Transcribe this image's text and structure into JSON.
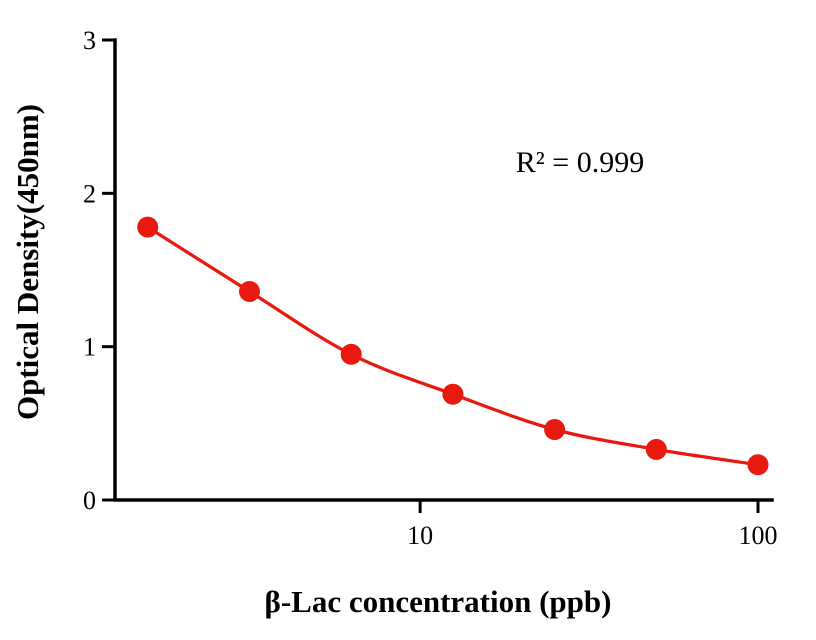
{
  "chart_data": {
    "type": "scatter",
    "x": [
      1.5625,
      3.125,
      6.25,
      12.5,
      25,
      50,
      100
    ],
    "y": [
      1.78,
      1.36,
      0.95,
      0.69,
      0.46,
      0.33,
      0.23
    ],
    "x_scale": "log10",
    "xlabel": "β-Lac concentration (ppb)",
    "ylabel": "Optical Density(450nm)",
    "annotation": "R² = 0.999",
    "x_ticks": [
      10,
      100
    ],
    "x_tick_labels": [
      "10",
      "100"
    ],
    "y_ticks": [
      0,
      1,
      2,
      3
    ],
    "y_tick_labels": [
      "0",
      "1",
      "2",
      "3"
    ],
    "xlim": [
      1.25,
      110
    ],
    "ylim": [
      0,
      3
    ],
    "grid": false,
    "legend": null,
    "line_color": "#e8190f",
    "marker_color": "#e8190f",
    "axis_color": "#000000"
  }
}
